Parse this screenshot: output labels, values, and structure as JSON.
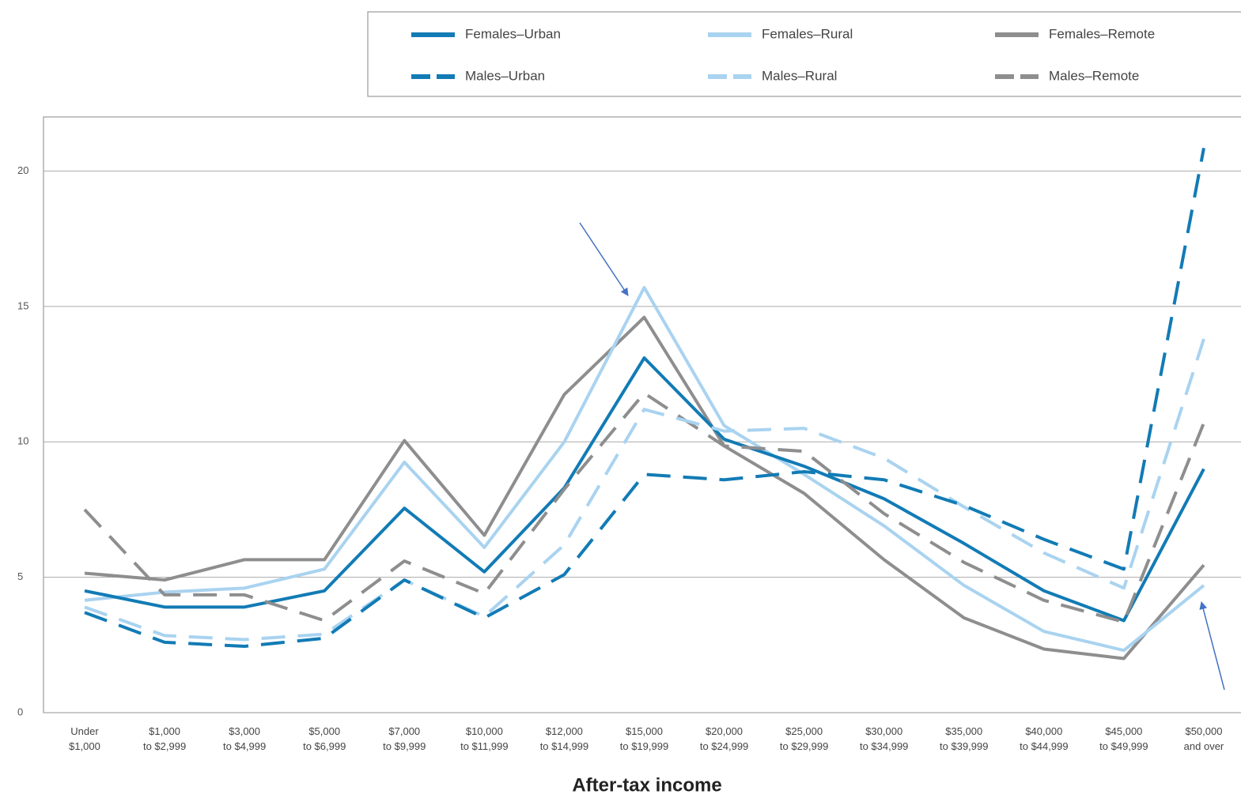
{
  "chart_data": {
    "type": "line",
    "xlabel": "After-tax income",
    "categories": [
      "Under\n$1,000",
      "$1,000\nto $2,999",
      "$3,000\nto $4,999",
      "$5,000\nto $6,999",
      "$7,000\nto $9,999",
      "$10,000\nto $11,999",
      "$12,000\nto $14,999",
      "$15,000\nto $19,999",
      "$20,000\nto $24,999",
      "$25,000\nto $29,999",
      "$30,000\nto $34,999",
      "$35,000\nto $39,999",
      "$40,000\nto $44,999",
      "$45,000\nto $49,999",
      "$50,000\nand over"
    ],
    "series": [
      {
        "name": "Females–Urban",
        "color": "#127bb5",
        "style": "solid",
        "values": [
          4.5,
          3.9,
          3.9,
          4.5,
          7.55,
          5.2,
          8.3,
          13.1,
          10.1,
          9.1,
          7.9,
          6.25,
          4.5,
          3.4,
          9.0
        ]
      },
      {
        "name": "Females–Rural",
        "color": "#a9d3f0",
        "style": "solid",
        "values": [
          4.15,
          4.45,
          4.6,
          5.3,
          9.25,
          6.1,
          10.0,
          15.7,
          10.6,
          8.8,
          6.9,
          4.7,
          3.0,
          2.3,
          4.7
        ]
      },
      {
        "name": "Females–Remote",
        "color": "#8e8e8e",
        "style": "solid",
        "values": [
          5.15,
          4.9,
          5.65,
          5.65,
          10.05,
          6.55,
          11.75,
          14.6,
          9.85,
          8.1,
          5.65,
          3.5,
          2.35,
          2.0,
          5.45
        ]
      },
      {
        "name": "Males–Urban",
        "color": "#127bb5",
        "style": "dashed",
        "values": [
          3.7,
          2.6,
          2.45,
          2.75,
          4.9,
          3.5,
          5.1,
          8.8,
          8.6,
          8.9,
          8.6,
          7.65,
          6.4,
          5.3,
          20.85
        ]
      },
      {
        "name": "Males–Rural",
        "color": "#a9d3f0",
        "style": "dashed",
        "values": [
          3.9,
          2.85,
          2.7,
          2.9,
          4.9,
          3.55,
          6.2,
          11.2,
          10.4,
          10.5,
          9.4,
          7.6,
          5.9,
          4.6,
          13.8
        ]
      },
      {
        "name": "Males–Remote",
        "color": "#8e8e8e",
        "style": "dashed",
        "values": [
          7.5,
          4.35,
          4.35,
          3.4,
          5.6,
          4.4,
          8.25,
          11.8,
          9.85,
          9.65,
          7.35,
          5.55,
          4.15,
          3.35,
          10.7
        ]
      }
    ],
    "ylim": [
      0,
      22
    ],
    "yticks": [
      0,
      5,
      10,
      15,
      20
    ],
    "grid": true,
    "legend": "top-right"
  }
}
